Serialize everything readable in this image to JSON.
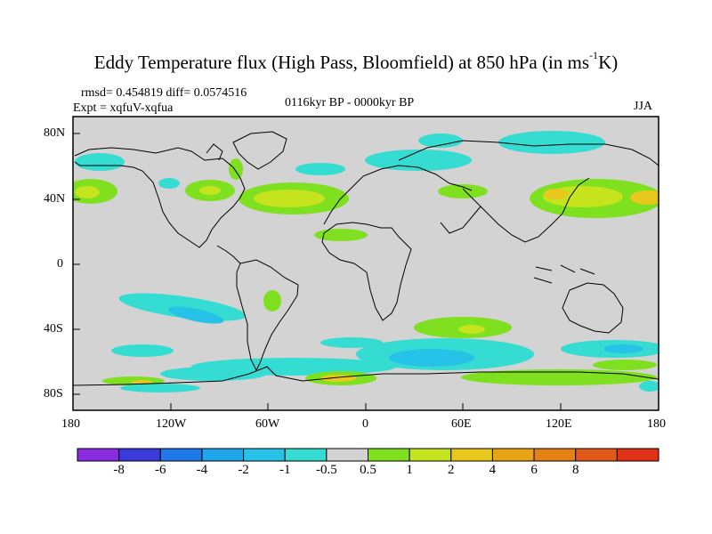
{
  "title_main": "Eddy Temperature flux (High Pass, Bloomfield) at 850 hPa (in ms",
  "title_sup": "-1",
  "title_end": "K)",
  "stats": "rmsd= 0.454819 diff= 0.0574516",
  "expt": "Expt = xqfuV-xqfua",
  "period": "0116kyr BP - 0000kyr BP",
  "season": "JJA",
  "lat_ticks": [
    "80N",
    "40N",
    "0",
    "40S",
    "80S"
  ],
  "lon_ticks": [
    "180",
    "120W",
    "60W",
    "0",
    "60E",
    "120E",
    "180"
  ],
  "colorbar": {
    "colors": [
      "#8a2be2",
      "#3b3bdc",
      "#1e78e6",
      "#1fa5ea",
      "#27c2e8",
      "#35dcd2",
      "#d3d3d3",
      "#7ee01e",
      "#c6e41e",
      "#e8c81c",
      "#e8a414",
      "#e48216",
      "#e15a1a",
      "#e03218"
    ],
    "labels": [
      "-8",
      "-6",
      "-4",
      "-2",
      "-1",
      "-0.5",
      "0.5",
      "1",
      "2",
      "4",
      "6",
      "8"
    ]
  },
  "colors": {
    "background": "#d3d3d3",
    "coast": "#000000"
  }
}
